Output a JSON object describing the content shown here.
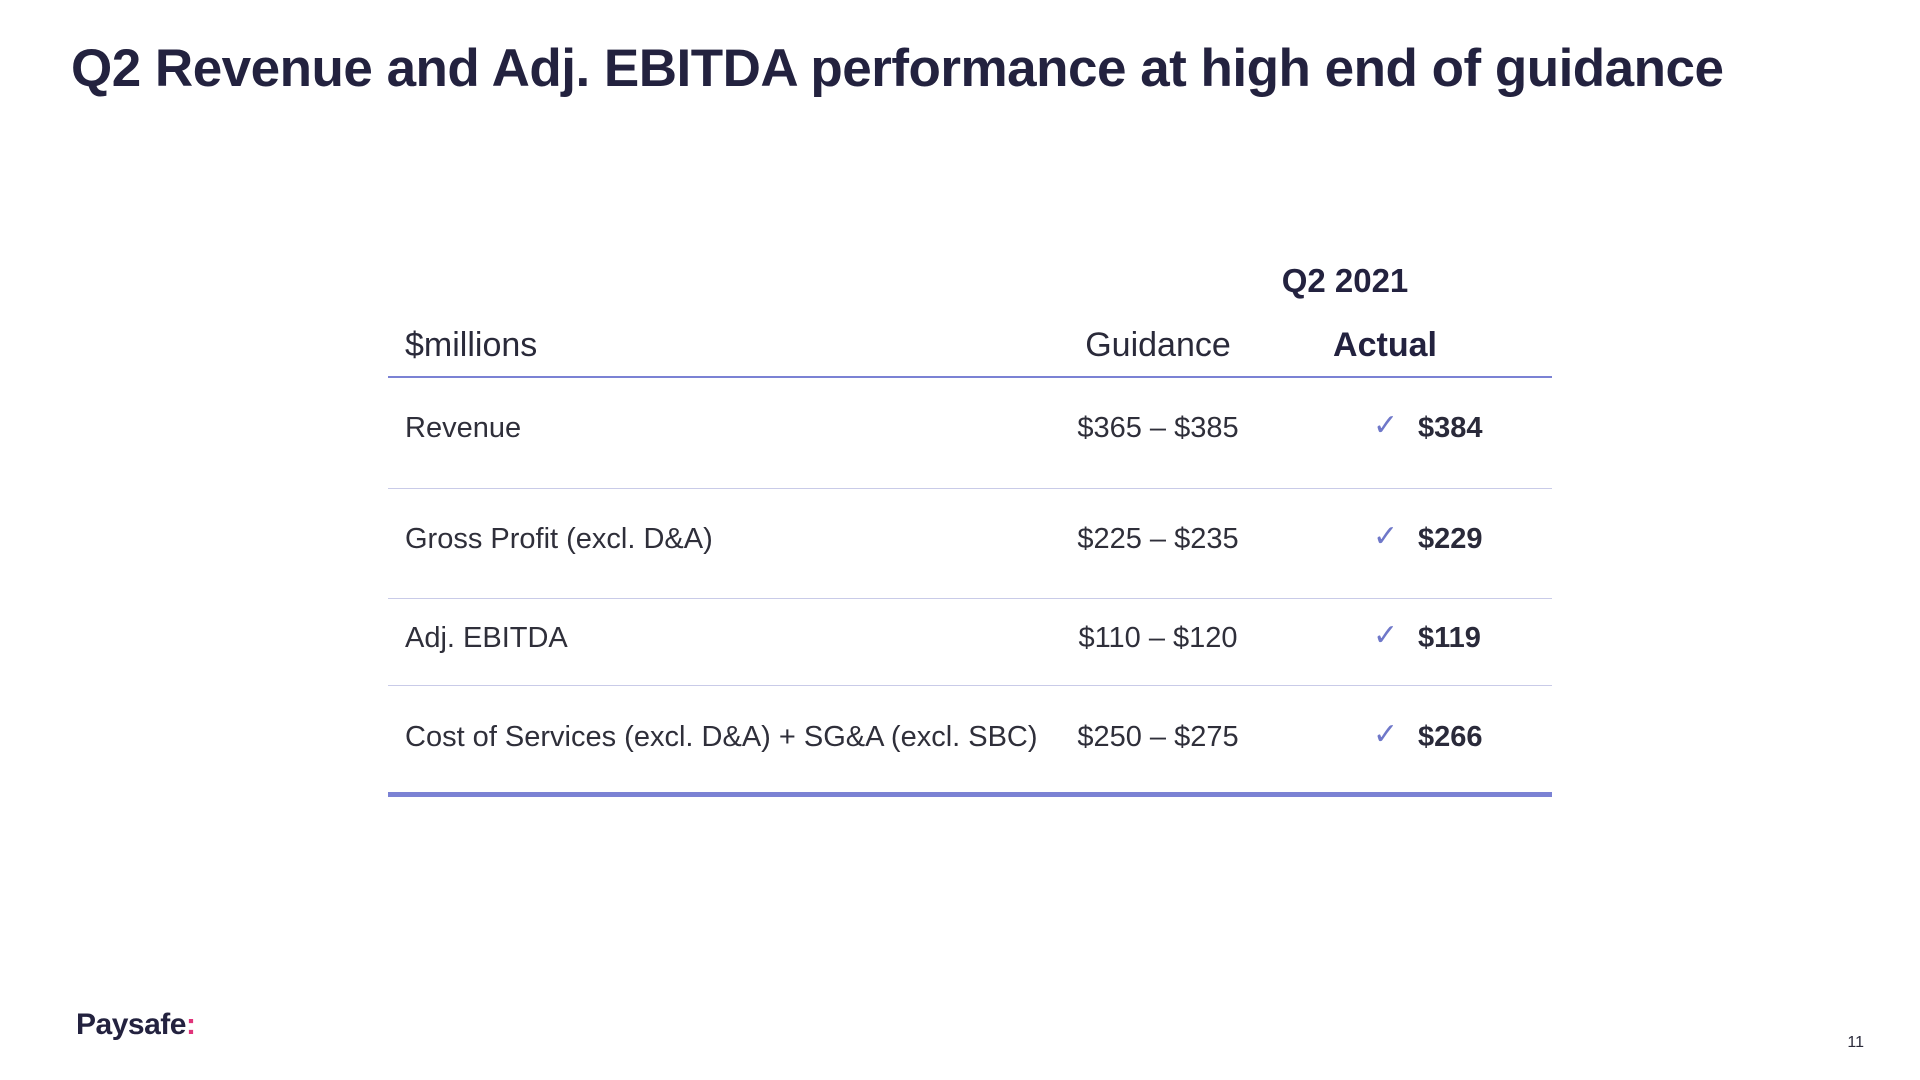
{
  "slide": {
    "title": "Q2 Revenue and Adj. EBITDA performance at high end of guidance",
    "page_number": "11"
  },
  "logo": {
    "text": "Paysafe",
    "mark": ":",
    "brand_color": "#23223f",
    "accent_color": "#e0347a"
  },
  "table": {
    "period": "Q2 2021",
    "columns": {
      "unit": "$millions",
      "guidance": "Guidance",
      "actual": "Actual"
    },
    "rows": [
      {
        "label": "Revenue",
        "guidance": "$365 – $385",
        "actual": "$384",
        "met": "✓"
      },
      {
        "label": "Gross Profit (excl. D&A)",
        "guidance": "$225 – $235",
        "actual": "$229",
        "met": "✓"
      },
      {
        "label": "Adj. EBITDA",
        "guidance": "$110 – $120",
        "actual": "$119",
        "met": "✓"
      },
      {
        "label": "Cost of Services (excl. D&A) + SG&A (excl. SBC)",
        "guidance": "$250 – $275",
        "actual": "$266",
        "met": "✓"
      }
    ],
    "accent_color": "#7b82d4"
  }
}
